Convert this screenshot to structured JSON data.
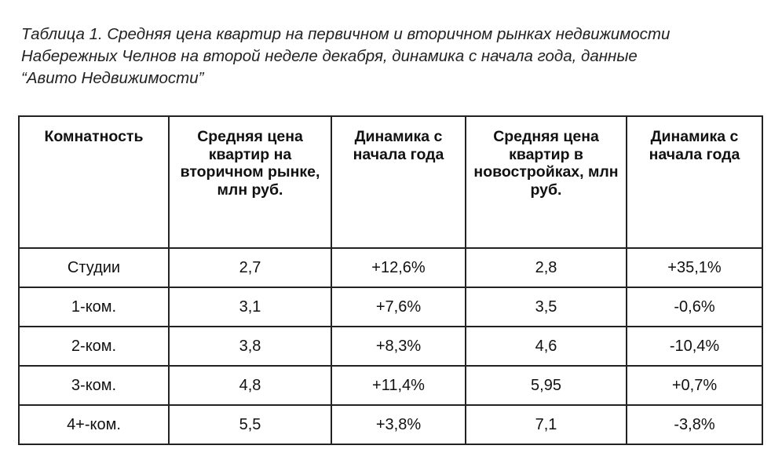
{
  "caption": {
    "lines": [
      "Таблица 1. Средняя цена квартир на первичном и вторичном рынках недвижимости",
      "Набережных Челнов на второй неделе декабря, динамика с начала года, данные",
      "“Авито Недвижимости”"
    ]
  },
  "table": {
    "headers": [
      "Комнатность",
      "Средняя цена квартир на вторичном рынке, млн руб.",
      "Динамика с начала года",
      "Средняя цена квартир в новостройках, млн руб.",
      "Динамика с начала года"
    ],
    "rows": [
      [
        "Студии",
        "2,7",
        "+12,6%",
        "2,8",
        "+35,1%"
      ],
      [
        "1-ком.",
        "3,1",
        "+7,6%",
        "3,5",
        "-0,6%"
      ],
      [
        "2-ком.",
        "3,8",
        "+8,3%",
        "4,6",
        "-10,4%"
      ],
      [
        "3-ком.",
        "4,8",
        "+11,4%",
        "5,95",
        "+0,7%"
      ],
      [
        "4+-ком.",
        "5,5",
        "+3,8%",
        "7,1",
        "-3,8%"
      ]
    ]
  }
}
